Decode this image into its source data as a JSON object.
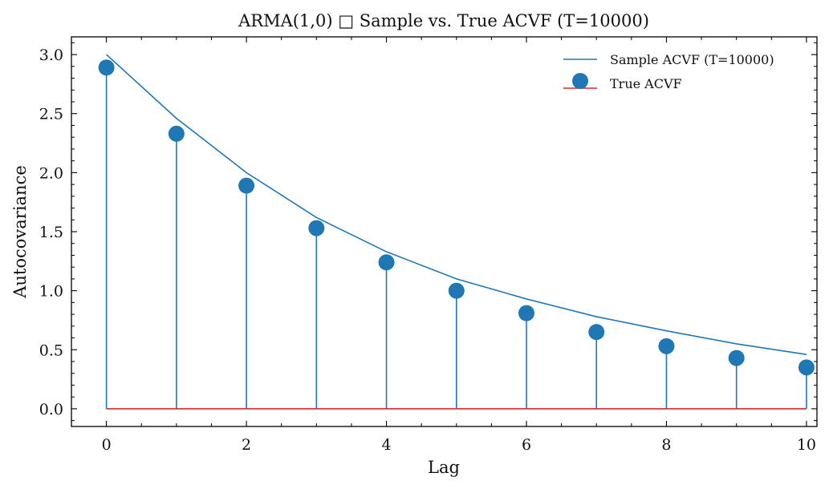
{
  "chart_data": {
    "type": "line",
    "title": "ARMA(1,0) □ Sample vs. True ACVF (T=10000)",
    "xlabel": "Lag",
    "ylabel": "Autocovariance",
    "xlim": [
      -0.5,
      10.15
    ],
    "ylim": [
      -0.15,
      3.15
    ],
    "x_ticks": [
      0,
      2,
      4,
      6,
      8,
      10
    ],
    "x_tick_labels": [
      "0",
      "2",
      "4",
      "6",
      "8",
      "10"
    ],
    "y_ticks": [
      0.0,
      0.5,
      1.0,
      1.5,
      2.0,
      2.5,
      3.0
    ],
    "y_tick_labels": [
      "0.0",
      "0.5",
      "1.0",
      "1.5",
      "2.0",
      "2.5",
      "3.0"
    ],
    "grid": false,
    "legend_position": "top-right",
    "x": [
      0,
      1,
      2,
      3,
      4,
      5,
      6,
      7,
      8,
      9,
      10
    ],
    "series": [
      {
        "name": "Sample ACVF (T=10000)",
        "kind": "line",
        "color": "#1f77b4",
        "values": [
          3.0,
          2.46,
          2.0,
          1.62,
          1.33,
          1.1,
          0.93,
          0.78,
          0.66,
          0.55,
          0.46
        ]
      },
      {
        "name": "True ACVF",
        "kind": "stem",
        "marker_color": "#1f77b4",
        "baseline_color": "#d62728",
        "values": [
          2.89,
          2.33,
          1.89,
          1.53,
          1.24,
          1.0,
          0.81,
          0.65,
          0.53,
          0.43,
          0.35
        ]
      }
    ]
  }
}
